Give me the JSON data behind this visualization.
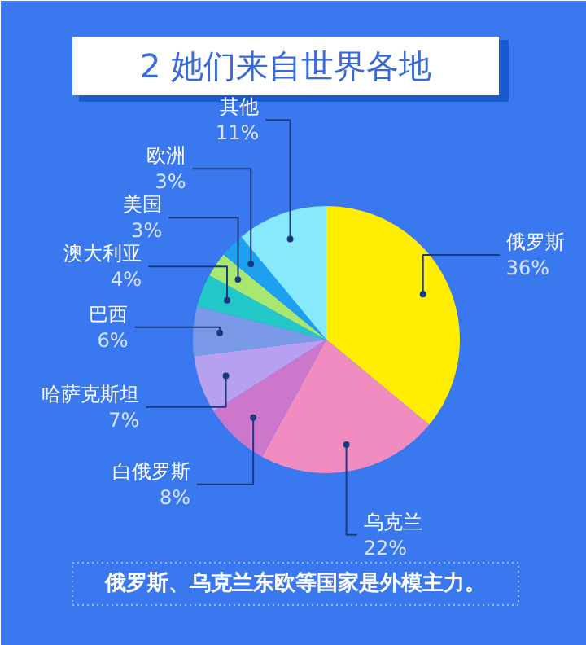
{
  "chart_data": {
    "type": "pie",
    "title": "2 她们来自世界各地",
    "categories": [
      "俄罗斯",
      "乌克兰",
      "白俄罗斯",
      "哈萨克斯坦",
      "巴西",
      "澳大利亚",
      "美国",
      "欧洲",
      "其他"
    ],
    "values": [
      36,
      22,
      8,
      7,
      6,
      4,
      3,
      3,
      11
    ],
    "value_labels": [
      "36%",
      "22%",
      "8%",
      "7%",
      "6%",
      "4%",
      "3%",
      "3%",
      "11%"
    ],
    "colors": [
      "#ffee00",
      "#f08cc0",
      "#cc77cc",
      "#b8a0f0",
      "#7a9ae8",
      "#22c8c8",
      "#a8e870",
      "#1ea0f0",
      "#88e8fc"
    ],
    "annotations": [
      "俄罗斯、乌克兰东欧等国家是外模主力。"
    ]
  }
}
